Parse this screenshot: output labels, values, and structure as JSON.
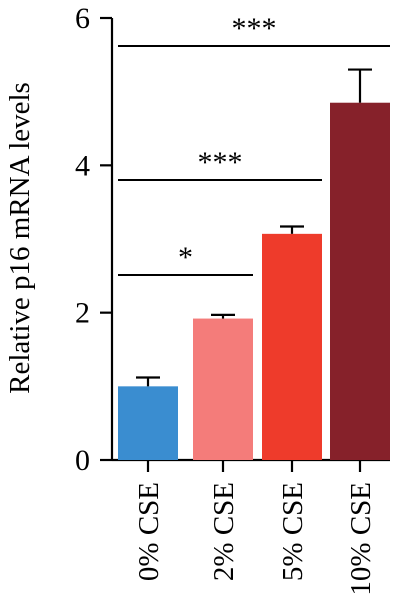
{
  "chart_data": {
    "type": "bar",
    "categories": [
      "0% CSE",
      "2% CSE",
      "5% CSE",
      "10% CSE"
    ],
    "values": [
      1.0,
      1.92,
      3.07,
      4.85
    ],
    "errors": [
      0.12,
      0.05,
      0.1,
      0.45
    ],
    "colors": [
      "#3a8dd0",
      "#f47c7a",
      "#ee3b2b",
      "#86212a"
    ],
    "ylabel": "Relative p16 mRNA levels",
    "xlabel": "",
    "ylim": [
      0,
      6
    ],
    "yticks": [
      0,
      2,
      4,
      6
    ],
    "significance": [
      {
        "from": 0,
        "to": 1,
        "label": "*"
      },
      {
        "from": 0,
        "to": 2,
        "label": "***"
      },
      {
        "from": 0,
        "to": 3,
        "label": "***"
      }
    ]
  }
}
